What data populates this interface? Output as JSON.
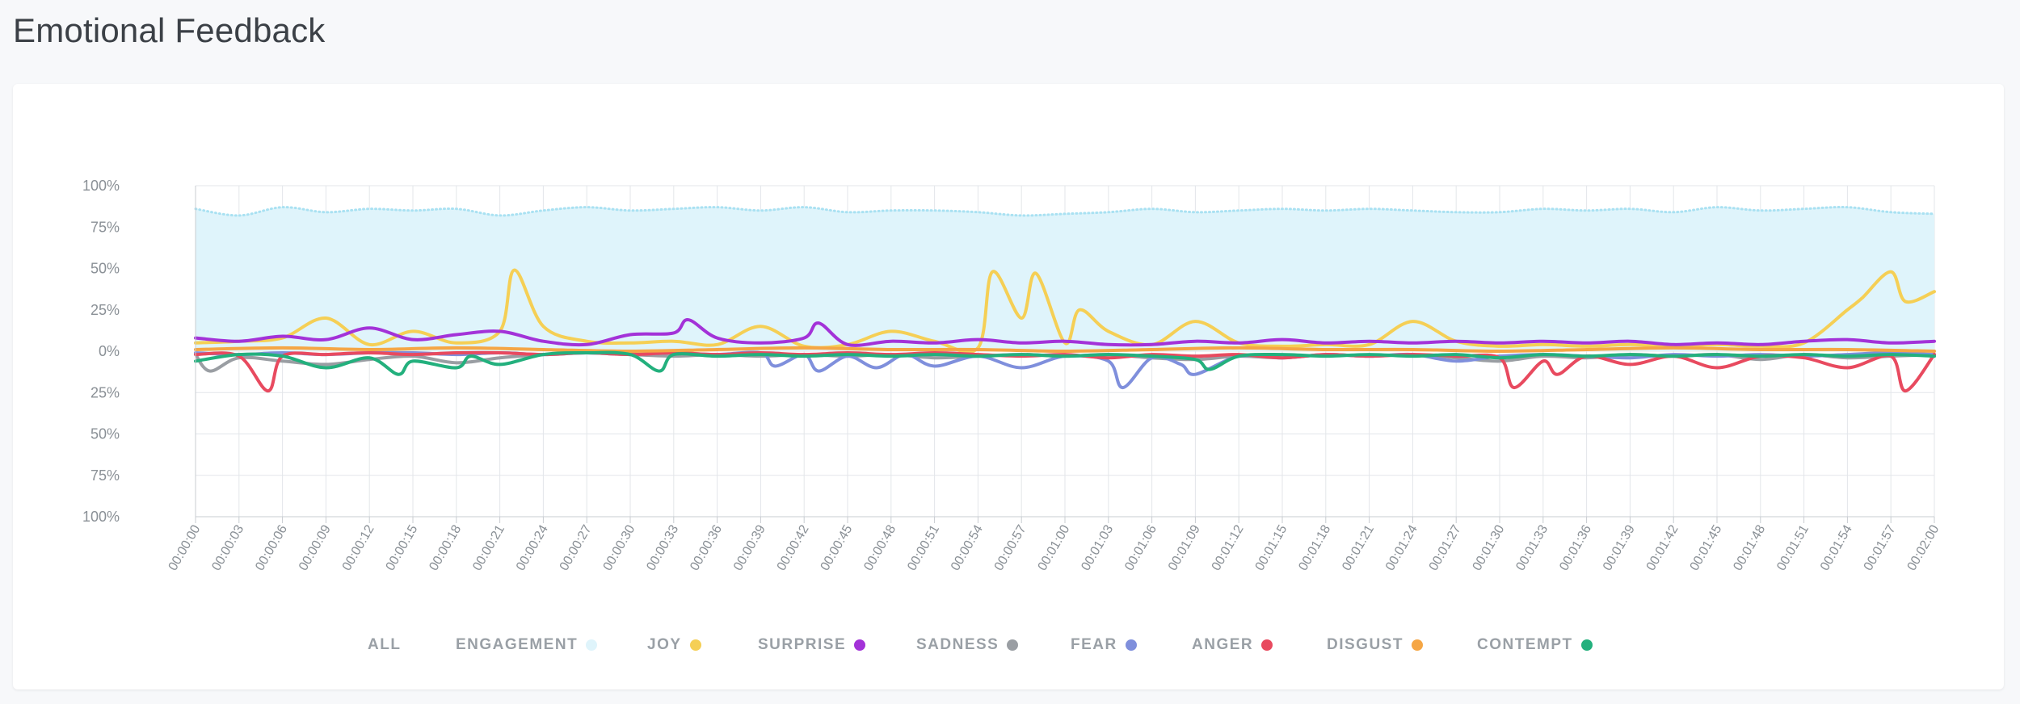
{
  "page": {
    "title": "Emotional Feedback"
  },
  "legend": [
    {
      "label": "ALL",
      "color": ""
    },
    {
      "label": "ENGAGEMENT",
      "color": "#dff4fb"
    },
    {
      "label": "JOY",
      "color": "#f5cf55"
    },
    {
      "label": "SURPRISE",
      "color": "#a332d8"
    },
    {
      "label": "SADNESS",
      "color": "#9a9ea3"
    },
    {
      "label": "FEAR",
      "color": "#7f8fdc"
    },
    {
      "label": "ANGER",
      "color": "#e84a5f"
    },
    {
      "label": "DISGUST",
      "color": "#f5a645"
    },
    {
      "label": "CONTEMPT",
      "color": "#23b07d"
    }
  ],
  "chart_data": {
    "type": "line",
    "x_tick_labels": [
      "00:00:00",
      "00:00:03",
      "00:00:06",
      "00:00:09",
      "00:00:12",
      "00:00:15",
      "00:00:18",
      "00:00:21",
      "00:00:24",
      "00:00:27",
      "00:00:30",
      "00:00:33",
      "00:00:36",
      "00:00:39",
      "00:00:42",
      "00:00:45",
      "00:00:48",
      "00:00:51",
      "00:00:54",
      "00:00:57",
      "00:01:00",
      "00:01:03",
      "00:01:06",
      "00:01:09",
      "00:01:12",
      "00:01:15",
      "00:01:18",
      "00:01:21",
      "00:01:24",
      "00:01:27",
      "00:01:30",
      "00:01:33",
      "00:01:36",
      "00:01:39",
      "00:01:42",
      "00:01:45",
      "00:01:48",
      "00:01:51",
      "00:01:54",
      "00:01:57",
      "00:02:00"
    ],
    "y_tick_labels": [
      "100%",
      "75%",
      "50%",
      "25%",
      "0%",
      "25%",
      "50%",
      "75%",
      "100%"
    ],
    "y_tick_values": [
      100,
      75,
      50,
      25,
      0,
      -25,
      -50,
      -75,
      -100
    ],
    "ylim": [
      -100,
      100
    ],
    "xlim": [
      0,
      120
    ],
    "grid": true,
    "legend_position": "bottom",
    "series": [
      {
        "name": "ENGAGEMENT",
        "color": "#dff4fb",
        "line_color": "#a9e1f2",
        "fill": true,
        "x": [
          0,
          3,
          6,
          9,
          12,
          15,
          18,
          21,
          24,
          27,
          30,
          33,
          36,
          39,
          42,
          45,
          48,
          51,
          54,
          57,
          60,
          63,
          66,
          69,
          72,
          75,
          78,
          81,
          84,
          87,
          90,
          93,
          96,
          99,
          102,
          105,
          108,
          111,
          114,
          117,
          120
        ],
        "values": [
          86,
          82,
          87,
          84,
          86,
          85,
          86,
          82,
          85,
          87,
          85,
          86,
          87,
          85,
          87,
          84,
          85,
          85,
          84,
          82,
          83,
          84,
          86,
          84,
          85,
          86,
          85,
          86,
          85,
          84,
          84,
          86,
          85,
          86,
          84,
          87,
          85,
          86,
          87,
          84,
          83
        ]
      },
      {
        "name": "JOY",
        "color": "#f5cf55",
        "x": [
          0,
          3,
          6,
          9,
          12,
          15,
          18,
          21,
          22,
          24,
          27,
          30,
          33,
          36,
          39,
          42,
          45,
          48,
          51,
          54,
          55,
          57,
          58,
          60,
          61,
          63,
          66,
          69,
          72,
          75,
          78,
          81,
          84,
          87,
          90,
          93,
          96,
          99,
          102,
          105,
          108,
          111,
          114,
          115,
          117,
          118,
          120
        ],
        "values": [
          5,
          6,
          8,
          20,
          4,
          12,
          5,
          12,
          49,
          15,
          6,
          5,
          6,
          4,
          15,
          3,
          4,
          12,
          6,
          2,
          48,
          20,
          47,
          5,
          25,
          12,
          4,
          18,
          5,
          3,
          4,
          4,
          18,
          6,
          3,
          4,
          3,
          4,
          3,
          4,
          3,
          5,
          25,
          32,
          48,
          30,
          36
        ]
      },
      {
        "name": "SURPRISE",
        "color": "#a332d8",
        "x": [
          0,
          3,
          6,
          9,
          12,
          15,
          18,
          21,
          24,
          27,
          30,
          33,
          34,
          36,
          39,
          42,
          43,
          45,
          48,
          51,
          54,
          57,
          60,
          63,
          66,
          69,
          72,
          75,
          78,
          81,
          84,
          87,
          90,
          93,
          96,
          99,
          102,
          105,
          108,
          111,
          114,
          117,
          120
        ],
        "values": [
          8,
          6,
          9,
          7,
          14,
          7,
          10,
          12,
          6,
          4,
          10,
          11,
          19,
          8,
          5,
          8,
          17,
          4,
          6,
          5,
          7,
          5,
          6,
          4,
          4,
          6,
          5,
          7,
          5,
          6,
          5,
          6,
          5,
          6,
          5,
          6,
          4,
          5,
          4,
          6,
          7,
          5,
          6
        ]
      },
      {
        "name": "SADNESS",
        "color": "#9a9ea3",
        "x": [
          0,
          1,
          3,
          6,
          9,
          12,
          15,
          18,
          21,
          24,
          27,
          30,
          33,
          36,
          39,
          42,
          45,
          48,
          51,
          54,
          57,
          60,
          63,
          66,
          69,
          72,
          75,
          78,
          81,
          84,
          87,
          90,
          93,
          96,
          99,
          102,
          105,
          108,
          111,
          114,
          117,
          120
        ],
        "values": [
          -2,
          -12,
          -4,
          -6,
          -8,
          -5,
          -3,
          -7,
          -4,
          -2,
          -1,
          -2,
          -3,
          -2,
          -3,
          -2,
          -3,
          -2,
          -4,
          -3,
          -2,
          -3,
          -2,
          -4,
          -5,
          -3,
          -4,
          -2,
          -3,
          -2,
          -4,
          -6,
          -3,
          -4,
          -2,
          -3,
          -2,
          -5,
          -2,
          -4,
          -3,
          -2
        ]
      },
      {
        "name": "FEAR",
        "color": "#7f8fdc",
        "x": [
          0,
          3,
          6,
          9,
          12,
          15,
          18,
          21,
          24,
          27,
          30,
          33,
          36,
          39,
          40,
          42,
          43,
          45,
          47,
          49,
          51,
          54,
          57,
          60,
          63,
          64,
          66,
          68,
          69,
          72,
          75,
          78,
          81,
          84,
          87,
          90,
          93,
          96,
          99,
          102,
          105,
          108,
          111,
          114,
          117,
          120
        ],
        "values": [
          -1,
          -2,
          -1,
          -2,
          -1,
          -1,
          -2,
          -1,
          -2,
          -1,
          -2,
          -1,
          -2,
          -1,
          -9,
          -2,
          -12,
          -3,
          -10,
          -2,
          -9,
          -3,
          -10,
          -3,
          -6,
          -22,
          -4,
          -8,
          -14,
          -3,
          -4,
          -2,
          -3,
          -2,
          -6,
          -3,
          -2,
          -3,
          -4,
          -2,
          -3,
          -2,
          -3,
          -2,
          -1,
          -2
        ]
      },
      {
        "name": "ANGER",
        "color": "#e84a5f",
        "x": [
          0,
          3,
          5,
          6,
          9,
          12,
          15,
          18,
          21,
          24,
          27,
          30,
          33,
          36,
          39,
          42,
          45,
          48,
          51,
          54,
          57,
          60,
          63,
          66,
          69,
          72,
          75,
          78,
          81,
          84,
          87,
          90,
          91,
          93,
          94,
          96,
          99,
          102,
          105,
          108,
          111,
          114,
          117,
          118,
          120
        ],
        "values": [
          -2,
          -3,
          -24,
          -3,
          -2,
          -1,
          -2,
          -1,
          -1,
          -2,
          -1,
          -2,
          -1,
          -2,
          -1,
          -2,
          -1,
          -2,
          -1,
          -2,
          -3,
          -2,
          -4,
          -2,
          -3,
          -2,
          -4,
          -2,
          -3,
          -2,
          -3,
          -4,
          -22,
          -6,
          -14,
          -3,
          -8,
          -3,
          -10,
          -3,
          -4,
          -10,
          -3,
          -24,
          -2
        ]
      },
      {
        "name": "DISGUST",
        "color": "#f5a645",
        "x": [
          0,
          6,
          12,
          18,
          24,
          30,
          36,
          42,
          48,
          54,
          60,
          66,
          72,
          78,
          84,
          90,
          96,
          102,
          108,
          114,
          120
        ],
        "values": [
          1,
          2,
          1,
          2,
          1,
          0,
          1,
          2,
          1,
          1,
          0,
          1,
          2,
          1,
          1,
          0,
          1,
          2,
          1,
          1,
          0
        ]
      },
      {
        "name": "CONTEMPT",
        "color": "#23b07d",
        "x": [
          0,
          3,
          6,
          9,
          12,
          14,
          15,
          18,
          19,
          21,
          24,
          27,
          30,
          32,
          33,
          36,
          39,
          42,
          45,
          48,
          51,
          54,
          57,
          60,
          63,
          66,
          69,
          70,
          72,
          75,
          78,
          81,
          84,
          87,
          90,
          93,
          96,
          99,
          102,
          105,
          108,
          111,
          114,
          117,
          120
        ],
        "values": [
          -6,
          -2,
          -3,
          -10,
          -4,
          -14,
          -6,
          -10,
          -3,
          -8,
          -2,
          -1,
          -2,
          -12,
          -2,
          -3,
          -2,
          -3,
          -2,
          -3,
          -2,
          -3,
          -2,
          -3,
          -2,
          -3,
          -5,
          -11,
          -3,
          -2,
          -3,
          -2,
          -3,
          -2,
          -4,
          -2,
          -3,
          -2,
          -3,
          -2,
          -3,
          -2,
          -3,
          -2,
          -3
        ]
      }
    ]
  }
}
